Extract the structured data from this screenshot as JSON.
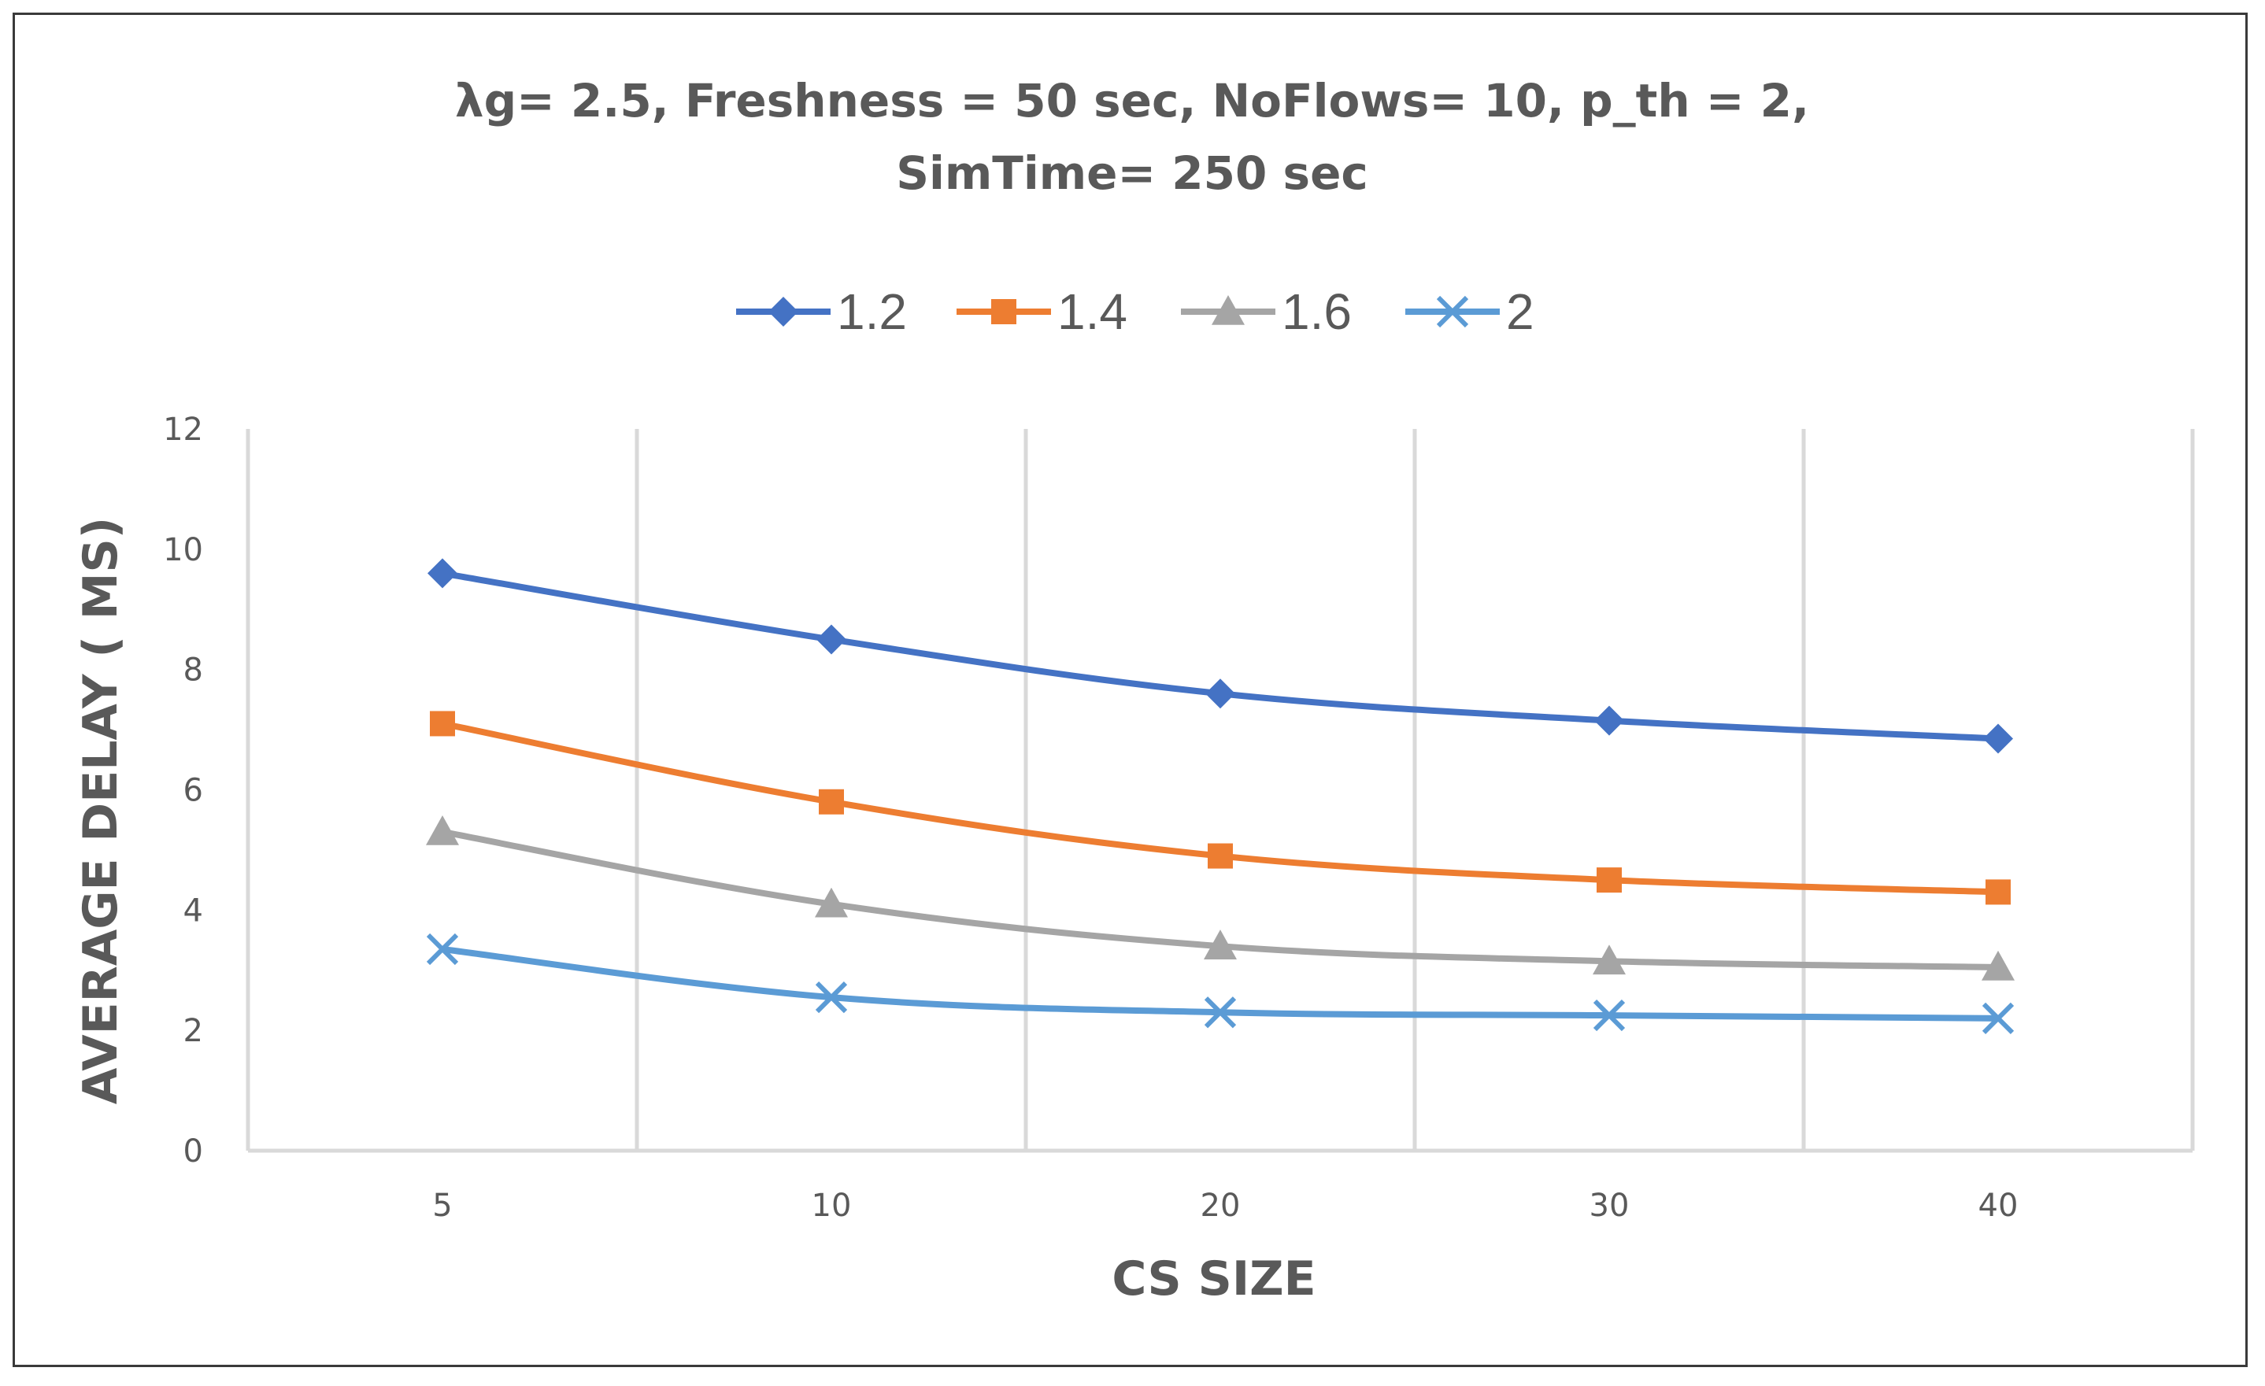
{
  "chart_data": {
    "type": "line",
    "title_lines": [
      "λg= 2.5, Freshness = 50 sec, NoFlows= 10, p_th = 2,",
      "SimTime= 250 sec"
    ],
    "xlabel": "CS SIZE",
    "ylabel": "AVERAGE DELAY ( MS)",
    "categories": [
      "5",
      "10",
      "20",
      "30",
      "40"
    ],
    "ylim": [
      0,
      12
    ],
    "yticks": [
      "0",
      "2",
      "4",
      "6",
      "8",
      "10",
      "12"
    ],
    "grid": "vertical",
    "legend_position": "top",
    "series": [
      {
        "name": "1.2",
        "color": "#4472c4",
        "marker": "diamond",
        "values": [
          9.6,
          8.5,
          7.6,
          7.15,
          6.85
        ]
      },
      {
        "name": "1.4",
        "color": "#ed7d31",
        "marker": "square",
        "values": [
          7.1,
          5.8,
          4.9,
          4.5,
          4.3
        ]
      },
      {
        "name": "1.6",
        "color": "#a5a5a5",
        "marker": "triangle",
        "values": [
          5.3,
          4.1,
          3.4,
          3.15,
          3.05
        ]
      },
      {
        "name": "2",
        "color": "#5b9bd5",
        "marker": "x",
        "values": [
          3.35,
          2.55,
          2.3,
          2.25,
          2.2
        ]
      }
    ]
  }
}
